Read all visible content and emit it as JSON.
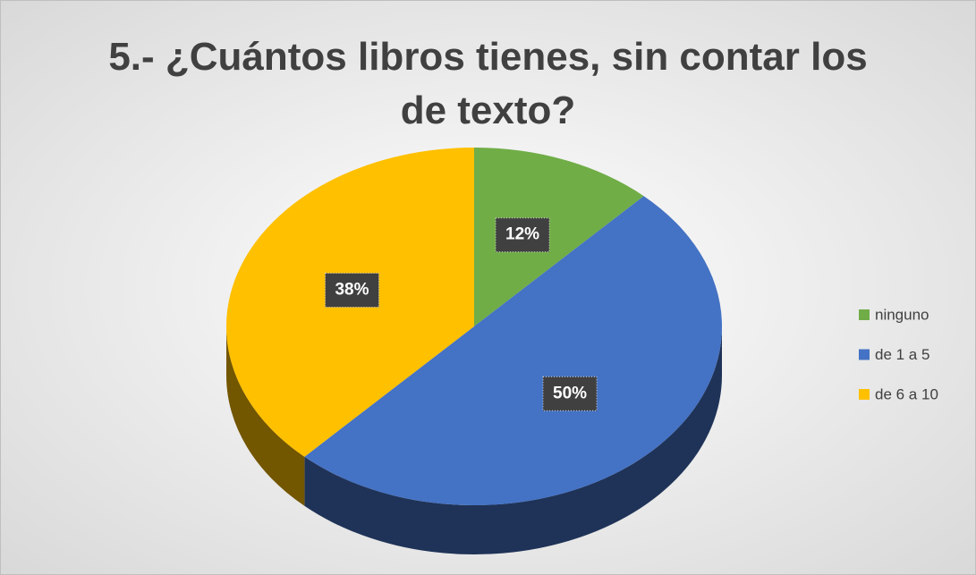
{
  "chart_data": {
    "type": "pie",
    "title": "5.- ¿Cuántos libros tienes, sin contar los de texto?",
    "categories": [
      "ninguno",
      "de 1 a 5",
      "de 6 a 10"
    ],
    "values": [
      12,
      50,
      38
    ],
    "value_labels": [
      "12%",
      "50%",
      "38%"
    ],
    "colors": [
      "#70ad47",
      "#4472c4",
      "#ffc000"
    ],
    "legend": "right"
  }
}
